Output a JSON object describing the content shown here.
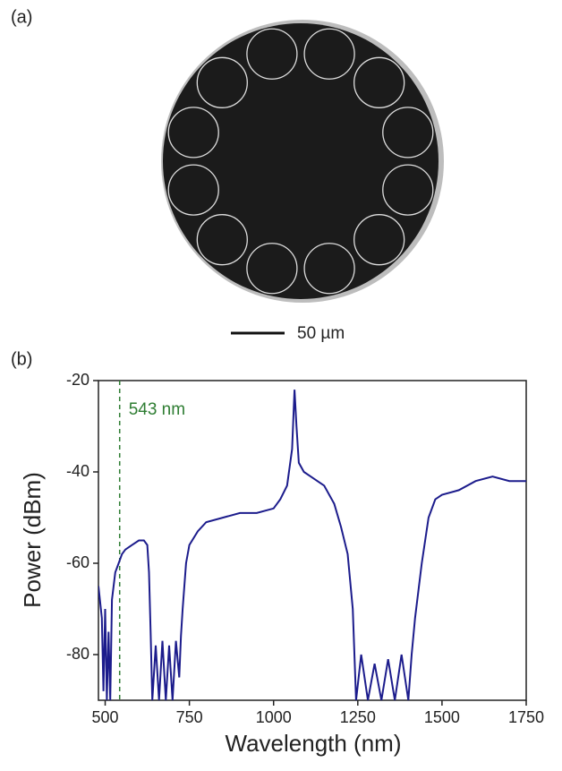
{
  "panel_a": {
    "label": "(a)",
    "scale_bar_label": "50 µm"
  },
  "panel_b": {
    "label": "(b)"
  },
  "chart_data": {
    "type": "line",
    "xlabel": "Wavelength (nm)",
    "ylabel": "Power (dBm)",
    "annotation": "543 nm",
    "vline": 543,
    "vline_color": "#2e7d32",
    "color": "#1c1c8c",
    "x": [
      480,
      490,
      495,
      500,
      505,
      510,
      515,
      520,
      530,
      540,
      550,
      560,
      580,
      600,
      615,
      625,
      630,
      635,
      640,
      650,
      660,
      670,
      680,
      690,
      700,
      710,
      720,
      725,
      730,
      740,
      750,
      775,
      800,
      850,
      900,
      950,
      1000,
      1020,
      1040,
      1055,
      1062,
      1068,
      1075,
      1090,
      1110,
      1150,
      1180,
      1200,
      1220,
      1235,
      1245,
      1260,
      1280,
      1300,
      1320,
      1340,
      1360,
      1380,
      1400,
      1410,
      1420,
      1440,
      1460,
      1480,
      1500,
      1550,
      1600,
      1650,
      1700,
      1750
    ],
    "values": [
      -65,
      -72,
      -88,
      -70,
      -90,
      -75,
      -90,
      -68,
      -62,
      -60,
      -58,
      -57,
      -56,
      -55,
      -55,
      -56,
      -62,
      -75,
      -90,
      -78,
      -90,
      -77,
      -90,
      -78,
      -90,
      -77,
      -85,
      -76,
      -70,
      -60,
      -56,
      -53,
      -51,
      -50,
      -49,
      -49,
      -48,
      -46,
      -43,
      -35,
      -22,
      -30,
      -38,
      -40,
      -41,
      -43,
      -47,
      -52,
      -58,
      -70,
      -90,
      -80,
      -90,
      -82,
      -90,
      -81,
      -90,
      -80,
      -90,
      -80,
      -72,
      -60,
      -50,
      -46,
      -45,
      -44,
      -42,
      -41,
      -42,
      -42
    ],
    "xlim": [
      480,
      1750
    ],
    "ylim": [
      -90,
      -20
    ],
    "xticks": [
      500,
      750,
      1000,
      1250,
      1500,
      1750
    ],
    "yticks": [
      -20,
      -40,
      -60,
      -80
    ]
  }
}
